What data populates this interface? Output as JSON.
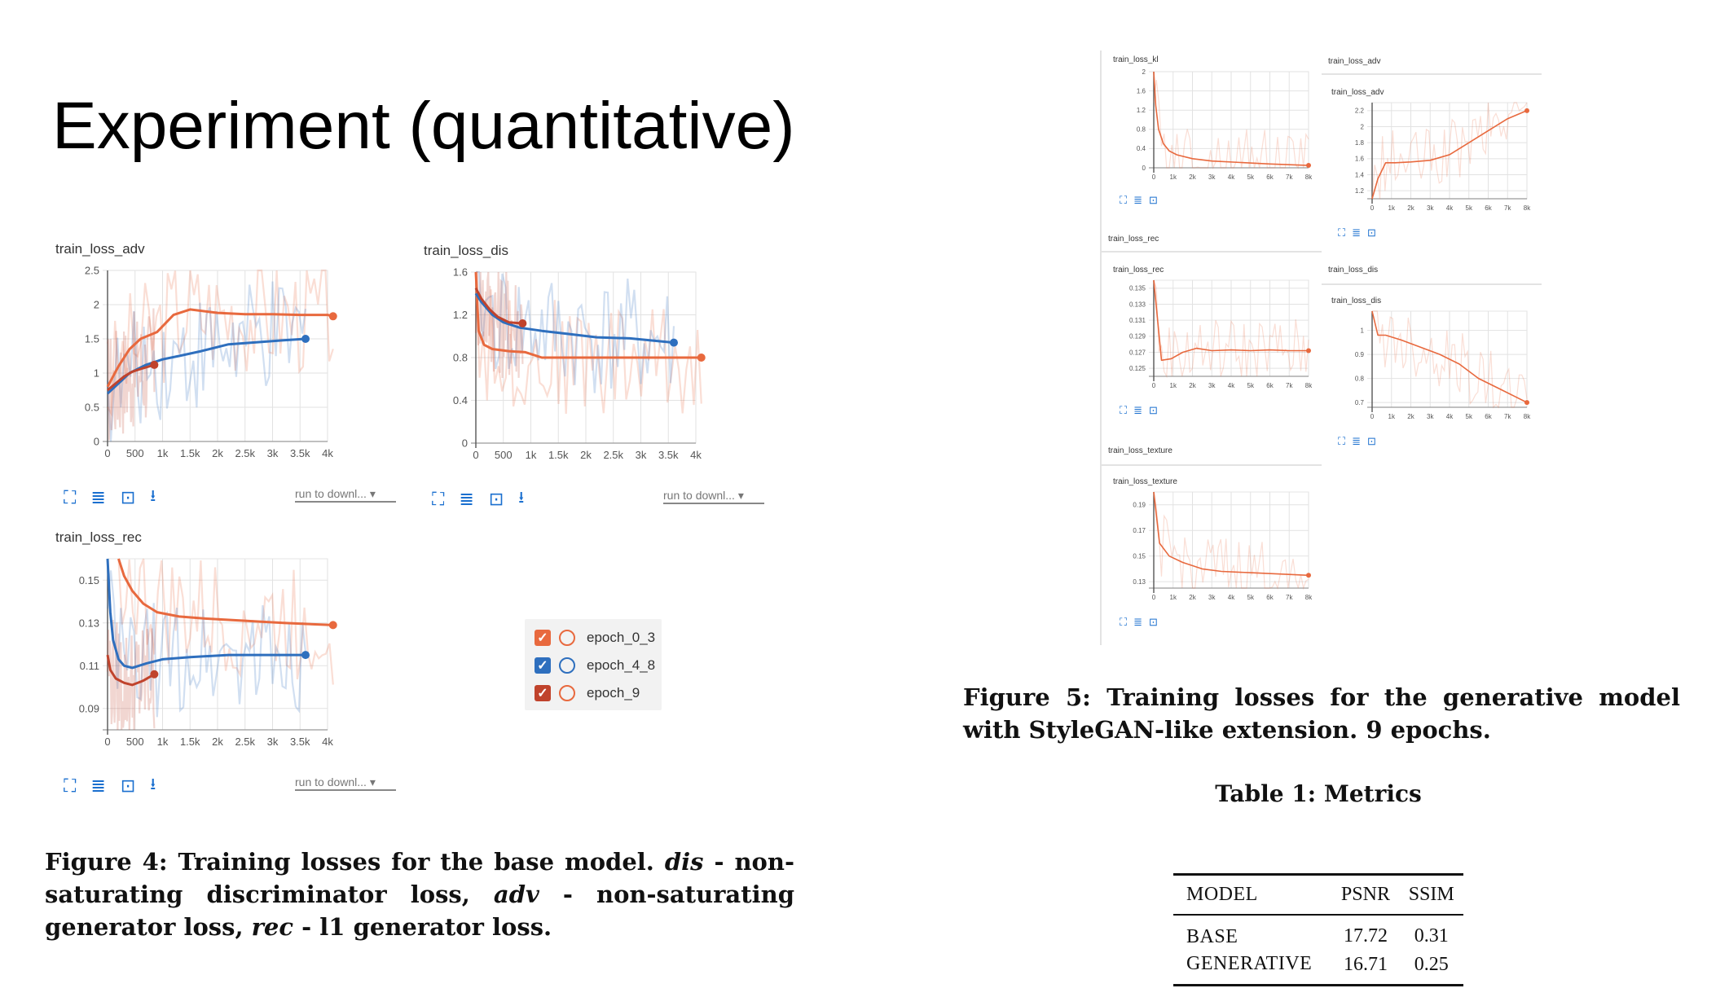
{
  "slide_title": "Experiment (quantitative)",
  "left": {
    "download_label": "run to downl...",
    "legend": [
      {
        "label": "epoch_0_3",
        "color": "#e8693e"
      },
      {
        "label": "epoch_4_8",
        "color": "#2e6fbe"
      },
      {
        "label": "epoch_9",
        "color": "#c0432c"
      }
    ],
    "caption": "Figure 4: Training losses for the base model. dis - non-saturating discriminator loss, adv - non-saturating generator loss, rec - l1 generator loss."
  },
  "right": {
    "caption": "Figure 5: Training losses for the generative model with StyleGAN-like extension. 9 epochs.",
    "table_title": "Table 1: Metrics",
    "table": {
      "headers": [
        "MODEL",
        "PSNR",
        "SSIM"
      ],
      "rows": [
        [
          "BASE",
          "17.72",
          "0.31"
        ],
        [
          "GENERATIVE",
          "16.71",
          "0.25"
        ]
      ]
    }
  },
  "chart_data": [
    {
      "type": "line",
      "title": "train_loss_adv",
      "x_ticks": [
        "0",
        "500",
        "1k",
        "1.5k",
        "2k",
        "2.5k",
        "3k",
        "3.5k",
        "4k"
      ],
      "y_ticks": [
        "0",
        "0.5",
        "1",
        "1.5",
        "2",
        "2.5"
      ],
      "xlim": [
        0,
        4000
      ],
      "ylim": [
        0,
        2.5
      ],
      "series": [
        {
          "name": "epoch_0_3",
          "color": "#e8693e",
          "x": [
            0,
            200,
            400,
            600,
            900,
            1200,
            1500,
            2000,
            2500,
            3000,
            3500,
            4000,
            4100
          ],
          "y": [
            0.8,
            1.1,
            1.35,
            1.5,
            1.6,
            1.85,
            1.93,
            1.88,
            1.86,
            1.86,
            1.85,
            1.85,
            1.83
          ]
        },
        {
          "name": "epoch_4_8",
          "color": "#2e6fbe",
          "x": [
            0,
            200,
            400,
            700,
            1000,
            1300,
            1700,
            2200,
            2700,
            3200,
            3600
          ],
          "y": [
            0.7,
            0.85,
            1.0,
            1.12,
            1.2,
            1.25,
            1.32,
            1.42,
            1.45,
            1.48,
            1.5
          ]
        },
        {
          "name": "epoch_9",
          "color": "#c0432c",
          "x": [
            0,
            150,
            300,
            450,
            600,
            850
          ],
          "y": [
            0.75,
            0.85,
            0.95,
            1.02,
            1.06,
            1.12
          ]
        }
      ]
    },
    {
      "type": "line",
      "title": "train_loss_dis",
      "x_ticks": [
        "0",
        "500",
        "1k",
        "1.5k",
        "2k",
        "2.5k",
        "3k",
        "3.5k",
        "4k"
      ],
      "y_ticks": [
        "0",
        "0.4",
        "0.8",
        "1.2",
        "1.6"
      ],
      "xlim": [
        0,
        4000
      ],
      "ylim": [
        0,
        1.6
      ],
      "series": [
        {
          "name": "epoch_0_3",
          "color": "#e8693e",
          "x": [
            0,
            50,
            150,
            300,
            600,
            900,
            1200,
            1800,
            2500,
            3200,
            4100
          ],
          "y": [
            1.6,
            1.05,
            0.92,
            0.88,
            0.86,
            0.85,
            0.8,
            0.8,
            0.8,
            0.8,
            0.8
          ]
        },
        {
          "name": "epoch_4_8",
          "color": "#2e6fbe",
          "x": [
            0,
            100,
            300,
            500,
            800,
            1200,
            1700,
            2200,
            2800,
            3200,
            3600
          ],
          "y": [
            1.4,
            1.32,
            1.2,
            1.13,
            1.08,
            1.05,
            1.02,
            0.99,
            0.98,
            0.96,
            0.94
          ]
        },
        {
          "name": "epoch_9",
          "color": "#c0432c",
          "x": [
            0,
            100,
            250,
            400,
            600,
            850
          ],
          "y": [
            1.45,
            1.35,
            1.25,
            1.18,
            1.13,
            1.12
          ]
        }
      ]
    },
    {
      "type": "line",
      "title": "train_loss_rec",
      "x_ticks": [
        "0",
        "500",
        "1k",
        "1.5k",
        "2k",
        "2.5k",
        "3k",
        "3.5k",
        "4k"
      ],
      "y_ticks": [
        "0.09",
        "0.11",
        "0.13",
        "0.15"
      ],
      "xlim": [
        0,
        4000
      ],
      "ylim": [
        0.08,
        0.16
      ],
      "series": [
        {
          "name": "epoch_0_3",
          "color": "#e8693e",
          "x": [
            200,
            300,
            450,
            650,
            900,
            1300,
            1800,
            2500,
            3200,
            4100
          ],
          "y": [
            0.16,
            0.152,
            0.145,
            0.139,
            0.135,
            0.133,
            0.132,
            0.131,
            0.13,
            0.129
          ]
        },
        {
          "name": "epoch_4_8",
          "color": "#2e6fbe",
          "x": [
            0,
            50,
            100,
            200,
            300,
            450,
            700,
            1000,
            1500,
            2200,
            2800,
            3600
          ],
          "y": [
            0.16,
            0.135,
            0.122,
            0.113,
            0.11,
            0.109,
            0.111,
            0.113,
            0.114,
            0.115,
            0.115,
            0.115
          ]
        },
        {
          "name": "epoch_9",
          "color": "#c0432c",
          "x": [
            0,
            50,
            150,
            300,
            450,
            650,
            850
          ],
          "y": [
            0.115,
            0.108,
            0.104,
            0.102,
            0.101,
            0.103,
            0.106
          ]
        }
      ]
    },
    {
      "type": "line",
      "title": "train_loss_kl",
      "x_ticks": [
        "0",
        "1k",
        "2k",
        "3k",
        "4k",
        "5k",
        "6k",
        "7k",
        "8k"
      ],
      "y_ticks": [
        "0",
        "0.4",
        "0.8",
        "1.2",
        "1.6",
        "2"
      ],
      "xlim": [
        0,
        8000
      ],
      "ylim": [
        0,
        2
      ],
      "series": [
        {
          "color": "#e8693e",
          "x": [
            0,
            100,
            250,
            500,
            800,
            1200,
            2000,
            3000,
            4500,
            6000,
            8000
          ],
          "y": [
            2,
            1.3,
            0.8,
            0.5,
            0.35,
            0.27,
            0.19,
            0.14,
            0.11,
            0.08,
            0.05
          ]
        }
      ]
    },
    {
      "type": "line",
      "title": "train_loss_adv",
      "x_ticks": [
        "0",
        "1k",
        "2k",
        "3k",
        "4k",
        "5k",
        "6k",
        "7k",
        "8k"
      ],
      "y_ticks": [
        "1.2",
        "1.4",
        "1.6",
        "1.8",
        "2",
        "2.2"
      ],
      "xlim": [
        0,
        8000
      ],
      "ylim": [
        1.1,
        2.3
      ],
      "series": [
        {
          "color": "#e8693e",
          "x": [
            0,
            300,
            700,
            1200,
            2000,
            3000,
            4000,
            5000,
            6000,
            7000,
            8000
          ],
          "y": [
            1.1,
            1.35,
            1.55,
            1.55,
            1.56,
            1.58,
            1.65,
            1.8,
            1.95,
            2.1,
            2.2
          ]
        }
      ]
    },
    {
      "type": "line",
      "title": "train_loss_rec",
      "x_ticks": [
        "0",
        "1k",
        "2k",
        "3k",
        "4k",
        "5k",
        "6k",
        "7k",
        "8k"
      ],
      "y_ticks": [
        "0.125",
        "0.127",
        "0.129",
        "0.131",
        "0.133",
        "0.135"
      ],
      "xlim": [
        0,
        8000
      ],
      "ylim": [
        0.124,
        0.136
      ],
      "series": [
        {
          "color": "#e8693e",
          "x": [
            0,
            400,
            900,
            1500,
            2200,
            3000,
            4000,
            5000,
            6000,
            7000,
            8000
          ],
          "y": [
            0.136,
            0.126,
            0.1262,
            0.127,
            0.1275,
            0.1272,
            0.1273,
            0.1272,
            0.1273,
            0.1272,
            0.1272
          ]
        }
      ]
    },
    {
      "type": "line",
      "title": "train_loss_dis",
      "x_ticks": [
        "0",
        "1k",
        "2k",
        "3k",
        "4k",
        "5k",
        "6k",
        "7k",
        "8k"
      ],
      "y_ticks": [
        "0.7",
        "0.8",
        "0.9",
        "1"
      ],
      "xlim": [
        0,
        8000
      ],
      "ylim": [
        0.68,
        1.08
      ],
      "series": [
        {
          "color": "#e8693e",
          "x": [
            0,
            300,
            700,
            1500,
            2500,
            3500,
            4500,
            5500,
            6500,
            7500,
            8000
          ],
          "y": [
            1.08,
            0.98,
            0.98,
            0.96,
            0.93,
            0.9,
            0.86,
            0.8,
            0.76,
            0.72,
            0.7
          ]
        }
      ]
    },
    {
      "type": "line",
      "title": "train_loss_texture",
      "x_ticks": [
        "0",
        "1k",
        "2k",
        "3k",
        "4k",
        "5k",
        "6k",
        "7k",
        "8k"
      ],
      "y_ticks": [
        "0.13",
        "0.15",
        "0.17",
        "0.19"
      ],
      "xlim": [
        0,
        8000
      ],
      "ylim": [
        0.125,
        0.2
      ],
      "series": [
        {
          "color": "#e8693e",
          "x": [
            0,
            300,
            800,
            1500,
            2500,
            3500,
            5000,
            6500,
            8000
          ],
          "y": [
            0.2,
            0.16,
            0.15,
            0.145,
            0.14,
            0.138,
            0.137,
            0.136,
            0.135
          ]
        }
      ]
    }
  ]
}
